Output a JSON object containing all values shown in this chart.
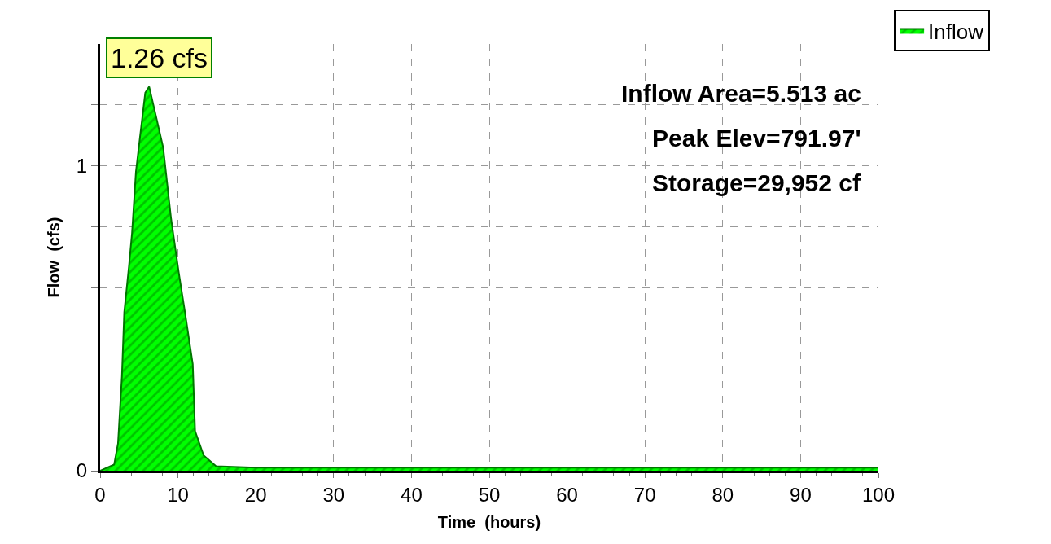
{
  "chart_data": {
    "type": "area",
    "xlabel": "Time  (hours)",
    "ylabel": "Flow  (cfs)",
    "x": [
      0,
      1.8,
      2.3,
      2.8,
      3.1,
      3.7,
      4.1,
      4.6,
      5.1,
      5.8,
      6.3,
      8.1,
      9.1,
      10.1,
      10.9,
      11.9,
      12.2,
      13.3,
      14.9,
      20,
      100
    ],
    "series": [
      {
        "name": "Inflow",
        "color": "#00ff00",
        "values": [
          0,
          0.02,
          0.09,
          0.31,
          0.52,
          0.67,
          0.78,
          0.98,
          1.09,
          1.24,
          1.26,
          1.06,
          0.83,
          0.65,
          0.52,
          0.35,
          0.13,
          0.05,
          0.015,
          0.01,
          0.01
        ]
      }
    ],
    "xlim": [
      0,
      100
    ],
    "xticks": [
      0,
      10,
      20,
      30,
      40,
      50,
      60,
      70,
      80,
      90,
      100
    ],
    "ylim": [
      0,
      1.4
    ],
    "yticks": [
      0,
      {
        "value": 0.2,
        "label": null
      },
      {
        "value": 0.4,
        "label": null
      },
      {
        "value": 0.6,
        "label": null
      },
      {
        "value": 0.8,
        "label": null
      },
      1,
      {
        "value": 1.2,
        "label": null
      }
    ],
    "annotations": [
      {
        "text": "1.26 cfs",
        "x": 6.3,
        "y": 1.26
      },
      "Inflow Area=5.513 ac",
      "Peak Elev=791.97'",
      "Storage=29,952 cf"
    ],
    "grid": true,
    "legend": "top right"
  }
}
